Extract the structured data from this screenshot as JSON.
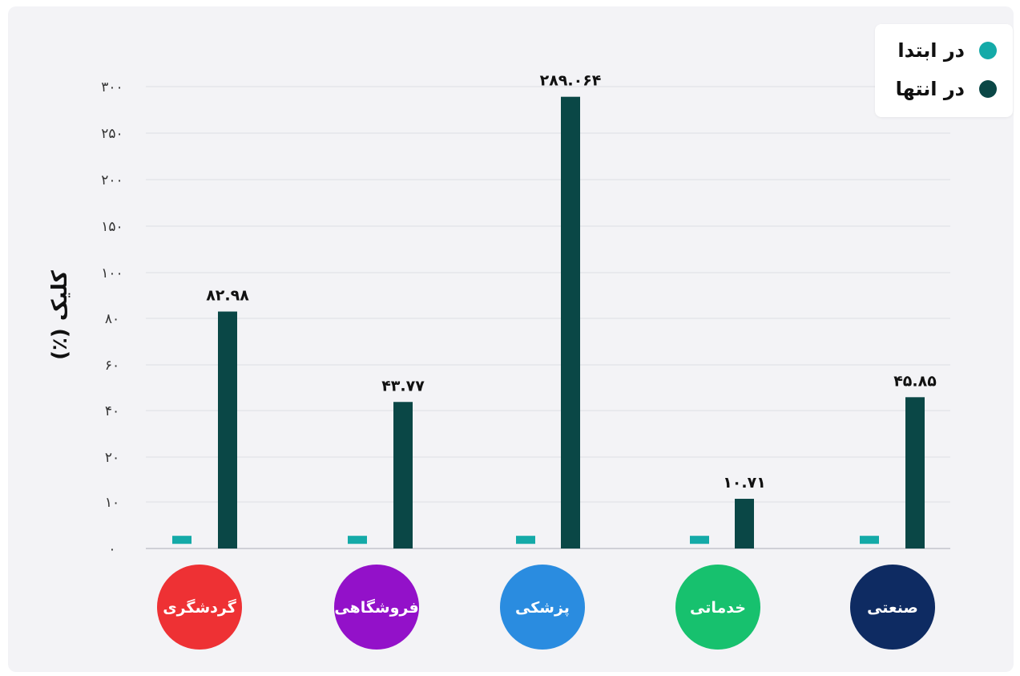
{
  "chart_data": {
    "type": "bar",
    "ylabel": "کلیک (٪)",
    "y_ticks": [
      "۰",
      "۱۰",
      "۲۰",
      "۴۰",
      "۶۰",
      "۸۰",
      "۱۰۰",
      "۱۵۰",
      "۲۰۰",
      "۲۵۰",
      "۳۰۰"
    ],
    "y_tick_values": [
      0,
      10,
      20,
      40,
      60,
      80,
      100,
      150,
      200,
      250,
      300
    ],
    "categories": [
      "گردشگری",
      "فروشگاهی",
      "پزشکی",
      "خدماتی",
      "صنعتی"
    ],
    "category_colors": [
      "#ee3134",
      "#9311c9",
      "#2a8ce0",
      "#17c16e",
      "#0e2b62"
    ],
    "series": [
      {
        "name": "در ابتدا",
        "color": "#14aaa8",
        "values": [
          1,
          1,
          1,
          1,
          1
        ]
      },
      {
        "name": "در انتها",
        "color": "#0a4746",
        "values": [
          82.98,
          43.77,
          289.064,
          10.71,
          45.85
        ]
      }
    ],
    "data_labels": [
      "۸۲.۹۸",
      "۴۳.۷۷",
      "۲۸۹.۰۶۴",
      "۱۰.۷۱",
      "۴۵.۸۵"
    ],
    "legend_position": "top-right",
    "grid": true
  }
}
